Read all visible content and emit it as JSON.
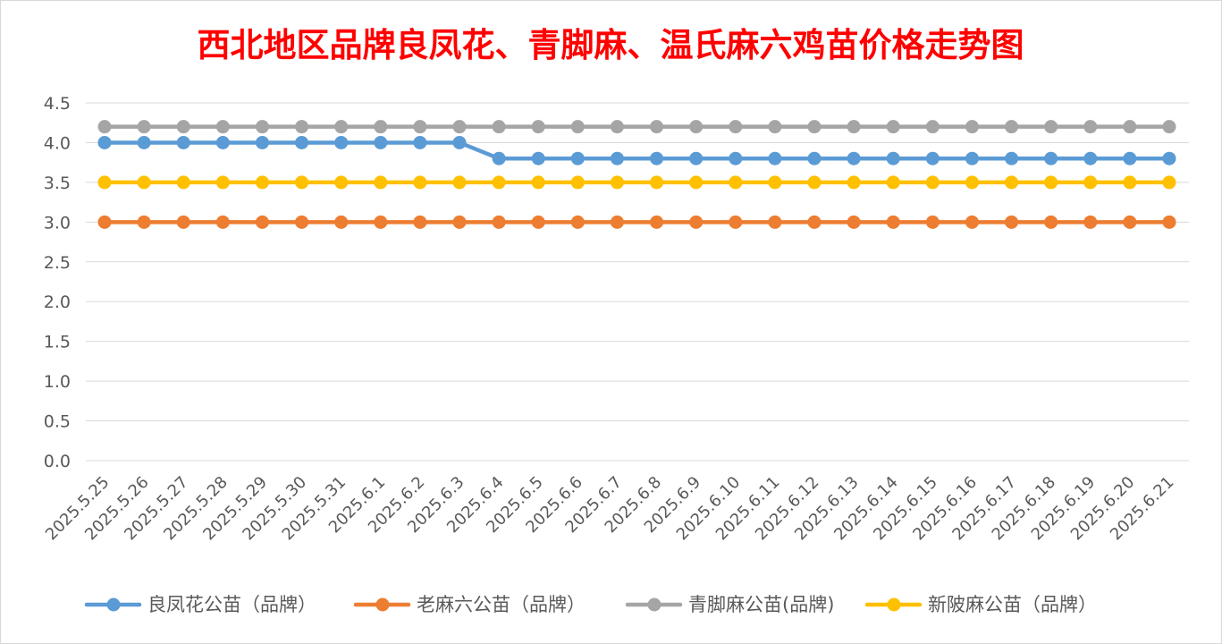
{
  "chart_data": {
    "type": "line",
    "title": "西北地区品牌良凤花、青脚麻、温氏麻六鸡苗价格走势图",
    "xlabel": "",
    "ylabel": "",
    "ylim": [
      0,
      4.5
    ],
    "yticks": [
      "0.0",
      "0.5",
      "1.0",
      "1.5",
      "2.0",
      "2.5",
      "3.0",
      "3.5",
      "4.0",
      "4.5"
    ],
    "grid": true,
    "legend_position": "bottom",
    "categories": [
      "2025.5.25",
      "2025.5.26",
      "2025.5.27",
      "2025.5.28",
      "2025.5.29",
      "2025.5.30",
      "2025.5.31",
      "2025.6.1",
      "2025.6.2",
      "2025.6.3",
      "2025.6.4",
      "2025.6.5",
      "2025.6.6",
      "2025.6.7",
      "2025.6.8",
      "2025.6.9",
      "2025.6.10",
      "2025.6.11",
      "2025.6.12",
      "2025.6.13",
      "2025.6.14",
      "2025.6.15",
      "2025.6.16",
      "2025.6.17",
      "2025.6.18",
      "2025.6.19",
      "2025.6.20",
      "2025.6.21"
    ],
    "series": [
      {
        "name": "良凤花公苗（品牌）",
        "color": "#5b9bd5",
        "values": [
          4.0,
          4.0,
          4.0,
          4.0,
          4.0,
          4.0,
          4.0,
          4.0,
          4.0,
          4.0,
          3.8,
          3.8,
          3.8,
          3.8,
          3.8,
          3.8,
          3.8,
          3.8,
          3.8,
          3.8,
          3.8,
          3.8,
          3.8,
          3.8,
          3.8,
          3.8,
          3.8,
          3.8
        ]
      },
      {
        "name": "老麻六公苗（品牌）",
        "color": "#ed7d31",
        "values": [
          3.0,
          3.0,
          3.0,
          3.0,
          3.0,
          3.0,
          3.0,
          3.0,
          3.0,
          3.0,
          3.0,
          3.0,
          3.0,
          3.0,
          3.0,
          3.0,
          3.0,
          3.0,
          3.0,
          3.0,
          3.0,
          3.0,
          3.0,
          3.0,
          3.0,
          3.0,
          3.0,
          3.0
        ]
      },
      {
        "name": "青脚麻公苗(品牌)",
        "color": "#a5a5a5",
        "values": [
          4.2,
          4.2,
          4.2,
          4.2,
          4.2,
          4.2,
          4.2,
          4.2,
          4.2,
          4.2,
          4.2,
          4.2,
          4.2,
          4.2,
          4.2,
          4.2,
          4.2,
          4.2,
          4.2,
          4.2,
          4.2,
          4.2,
          4.2,
          4.2,
          4.2,
          4.2,
          4.2,
          4.2
        ]
      },
      {
        "name": "新陂麻公苗（品牌）",
        "color": "#ffc000",
        "values": [
          3.5,
          3.5,
          3.5,
          3.5,
          3.5,
          3.5,
          3.5,
          3.5,
          3.5,
          3.5,
          3.5,
          3.5,
          3.5,
          3.5,
          3.5,
          3.5,
          3.5,
          3.5,
          3.5,
          3.5,
          3.5,
          3.5,
          3.5,
          3.5,
          3.5,
          3.5,
          3.5,
          3.5
        ]
      }
    ]
  }
}
